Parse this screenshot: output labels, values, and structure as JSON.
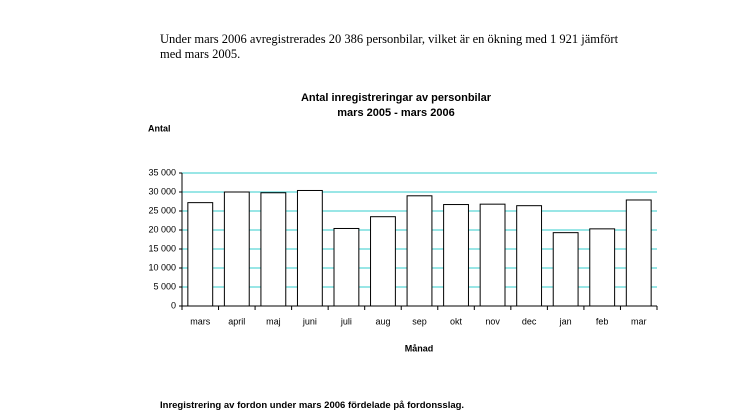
{
  "document": {
    "paragraph": "Under mars 2006 avregistrerades 20 386 personbilar, vilket är en ökning med 1 921 jämfört med mars 2005.",
    "footer_heading": "Inregistrering av fordon under mars 2006 fördelade på fordonsslag."
  },
  "chart_data": {
    "type": "bar",
    "title": "Antal inregistreringar av personbilar",
    "subtitle": "mars 2005 - mars 2006",
    "y_label": "Antal",
    "x_label": "Månad",
    "categories": [
      "mars",
      "april",
      "maj",
      "juni",
      "juli",
      "aug",
      "sep",
      "okt",
      "nov",
      "dec",
      "jan",
      "feb",
      "mar"
    ],
    "values": [
      27200,
      30000,
      29800,
      30400,
      20400,
      23500,
      29000,
      26700,
      26800,
      26400,
      19300,
      20300,
      27900
    ],
    "color": "#ffffff",
    "grid_color": "#33cccc",
    "ylim": [
      0,
      35000
    ],
    "yticks": [
      0,
      {
        "value": 5000,
        "label": "5 000"
      },
      {
        "value": 10000,
        "label": "10 000"
      },
      {
        "value": 15000,
        "label": "15 000"
      },
      {
        "value": 20000,
        "label": "20 000"
      },
      {
        "value": 25000,
        "label": "25 000"
      },
      {
        "value": 30000,
        "label": "30 000"
      },
      {
        "value": 35000,
        "label": "35 000"
      }
    ],
    "grid": true
  }
}
